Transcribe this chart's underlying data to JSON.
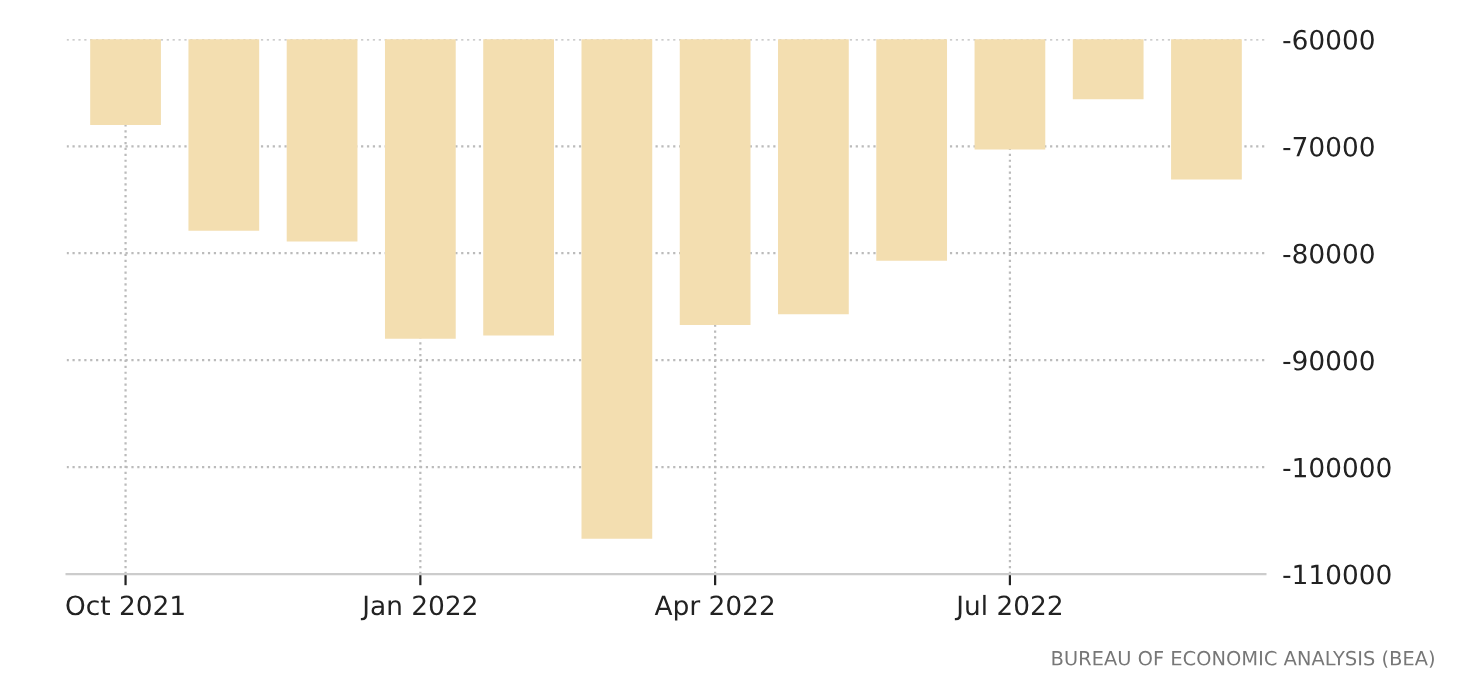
{
  "chart_data": {
    "type": "bar",
    "categories": [
      "Oct 2021",
      null,
      null,
      "Jan 2022",
      null,
      null,
      "Apr 2022",
      null,
      null,
      "Jul 2022",
      null,
      null
    ],
    "values": [
      -68000,
      -77900,
      -78900,
      -88000,
      -87700,
      -106700,
      -86700,
      -85700,
      -80700,
      -70300,
      -65600,
      -73100
    ],
    "color": "#f3deb0",
    "ylim": [
      -110000,
      -60000
    ],
    "yticks": [
      -110000,
      -100000,
      -90000,
      -80000,
      -70000,
      -60000
    ],
    "grid": true,
    "annotations": [
      "BUREAU OF ECONOMIC ANALYSIS (BEA)"
    ]
  }
}
